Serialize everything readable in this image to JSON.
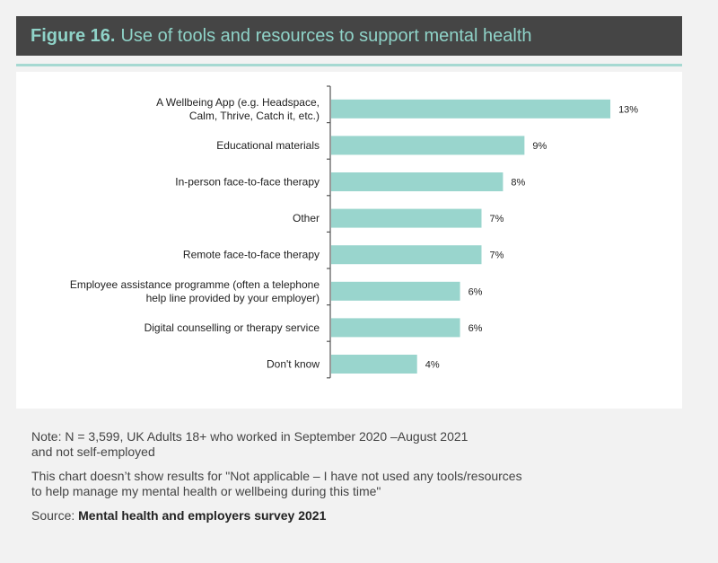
{
  "header": {
    "figure_label": "Figure 16.",
    "title": "Use of tools and resources to support mental health"
  },
  "colors": {
    "header_bg": "#454545",
    "header_text": "#8fd3c8",
    "bar": "#99d5cd",
    "accent_line": "#a6d9d2"
  },
  "chart_data": {
    "type": "bar",
    "orientation": "horizontal",
    "title": "Use of tools and resources to support mental health",
    "xlabel": "",
    "ylabel": "",
    "grid": false,
    "xlim": [
      0,
      14
    ],
    "categories": [
      [
        "A Wellbeing App (e.g. Headspace,",
        "Calm, Thrive, Catch it, etc.)"
      ],
      [
        "Educational materials"
      ],
      [
        "In-person face-to-face therapy"
      ],
      [
        "Other"
      ],
      [
        "Remote face-to-face therapy"
      ],
      [
        "Employee assistance programme (often a telephone",
        "help line provided by your employer)"
      ],
      [
        "Digital counselling or therapy service"
      ],
      [
        "Don't know"
      ]
    ],
    "values": [
      13,
      9,
      8,
      7,
      7,
      6,
      6,
      4
    ],
    "value_labels": [
      "13%",
      "9%",
      "8%",
      "7%",
      "7%",
      "6%",
      "6%",
      "4%"
    ]
  },
  "notes": {
    "note_line1": "Note: N = 3,599, UK Adults 18+ who worked in September 2020 –August 2021",
    "note_line2": "and not self-employed",
    "excl_line1": "This chart doesn’t show results for \"Not applicable – I have not used any tools/resources",
    "excl_line2": "to help manage my mental health or wellbeing during this time\"",
    "source_prefix": "Source: ",
    "source_name": "Mental health and employers survey 2021"
  }
}
